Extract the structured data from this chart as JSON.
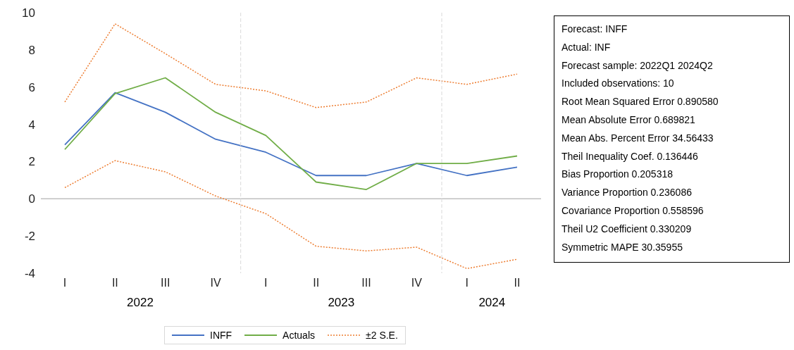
{
  "chart_data": {
    "type": "line",
    "categories": [
      "I",
      "II",
      "III",
      "IV",
      "I",
      "II",
      "III",
      "IV",
      "I",
      "II"
    ],
    "series": [
      {
        "name": "INFF",
        "color": "#4472c4",
        "values": [
          2.9,
          5.7,
          4.65,
          3.2,
          2.5,
          1.25,
          1.25,
          1.9,
          1.25,
          1.7
        ]
      },
      {
        "name": "Actuals",
        "color": "#70ad47",
        "values": [
          2.65,
          5.65,
          6.5,
          4.65,
          3.4,
          0.9,
          0.5,
          1.9,
          1.9,
          2.3
        ]
      },
      {
        "name": "±2 S.E.",
        "color": "#ed7d31",
        "line_style": "dotted",
        "values": [
          5.2,
          9.4,
          7.8,
          6.15,
          5.8,
          4.9,
          5.2,
          6.5,
          6.15,
          6.7
        ]
      },
      {
        "color": "#ed7d31",
        "line_style": "dotted",
        "values": [
          0.6,
          2.05,
          1.45,
          0.15,
          -0.8,
          -2.55,
          -2.8,
          -2.6,
          -3.75,
          -3.25
        ]
      }
    ],
    "ylim": [
      -4,
      10
    ],
    "yticks": [
      -4,
      -2,
      0,
      2,
      4,
      6,
      8,
      10
    ],
    "ref_lines": [
      {
        "axis": "y",
        "value": 0,
        "color": "#bfbfbf"
      }
    ],
    "legend": "bottom",
    "marker": "none",
    "annotations": [
      "2022",
      "2023",
      "2024",
      "Forecast: INFF",
      "Actual: INF",
      "Forecast sample: 2022Q1 2024Q2",
      "Included observations: 10",
      "Root Mean Squared Error 0.890580",
      "Mean Absolute Error 0.689821",
      "Mean Abs. Percent Error 34.56433",
      "Theil Inequality Coef. 0.136446",
      "Bias Proportion 0.205318",
      "Variance Proportion 0.236086",
      "Covariance Proportion 0.558596",
      "Theil U2 Coefficient 0.330209",
      "Symmetric MAPE 30.35955"
    ]
  }
}
